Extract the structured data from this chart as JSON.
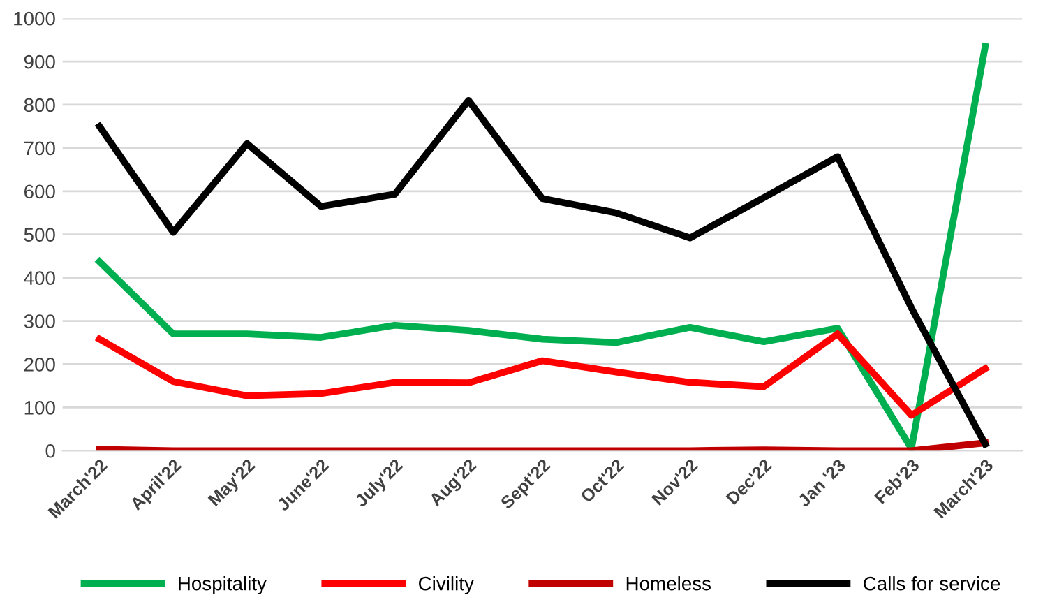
{
  "chart_data": {
    "type": "line",
    "categories": [
      "March'22",
      "April'22",
      "May'22",
      "June'22",
      "July'22",
      "Aug'22",
      "Sept'22",
      "Oct'22",
      "Nov'22",
      "Dec'22",
      "Jan '23",
      "Feb'23",
      "March'23"
    ],
    "series": [
      {
        "name": "Hospitality",
        "color": "#00b050",
        "values": [
          437,
          270,
          270,
          262,
          290,
          278,
          258,
          250,
          285,
          252,
          283,
          5,
          935
        ]
      },
      {
        "name": "Civility",
        "color": "#ff0000",
        "values": [
          258,
          160,
          127,
          132,
          158,
          157,
          208,
          182,
          158,
          148,
          270,
          82,
          190
        ]
      },
      {
        "name": "Homeless",
        "color": "#c00000",
        "values": [
          3,
          0,
          0,
          0,
          0,
          0,
          0,
          0,
          0,
          2,
          0,
          0,
          18
        ]
      },
      {
        "name": "Calls for service",
        "color": "#000000",
        "values": [
          750,
          505,
          710,
          565,
          593,
          810,
          583,
          550,
          492,
          585,
          680,
          330,
          15
        ]
      }
    ],
    "ylim": [
      0,
      1000
    ],
    "yticks": [
      0,
      100,
      200,
      300,
      400,
      500,
      600,
      700,
      800,
      900,
      1000
    ],
    "grid": "y",
    "legend": "bottom",
    "marker": "none",
    "line_style": "solid"
  }
}
